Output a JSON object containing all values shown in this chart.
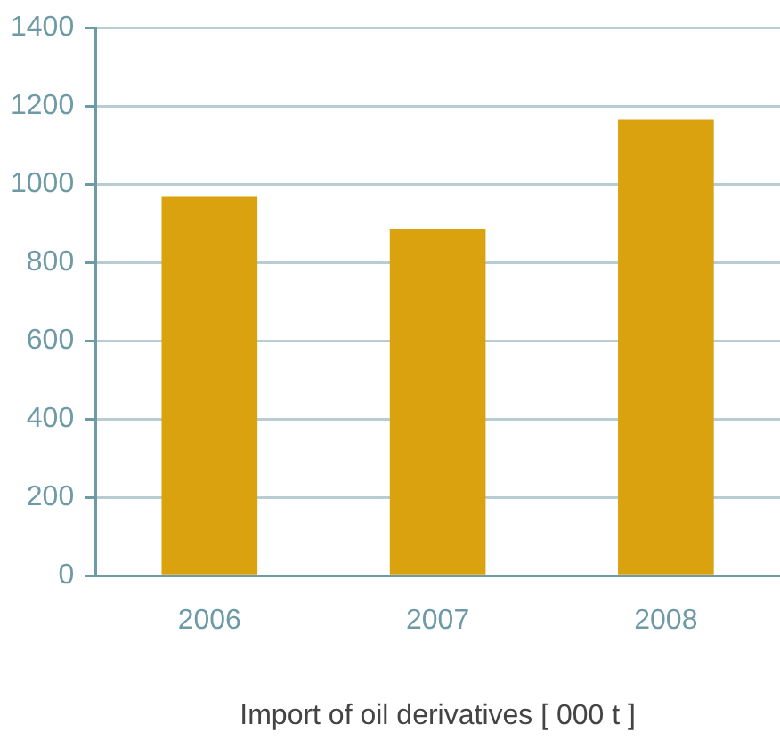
{
  "chart_data": {
    "type": "bar",
    "xlabel": "Import of oil derivatives [ 000 t ]",
    "categories": [
      "2006",
      "2007",
      "2008"
    ],
    "values": [
      970,
      885,
      1165
    ],
    "color": "#dba20f",
    "ylim": [
      0,
      1400
    ],
    "yticks": [
      0,
      200,
      400,
      600,
      800,
      1000,
      1200,
      1400
    ],
    "grid": "y"
  }
}
